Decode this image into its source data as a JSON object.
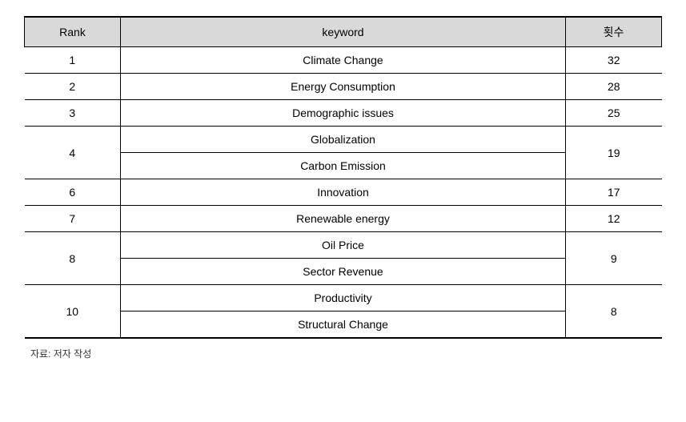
{
  "table": {
    "columns": {
      "rank": "Rank",
      "keyword": "keyword",
      "count": "횟수"
    },
    "header_bg": "#d9d9d9",
    "border_color": "#000000",
    "font_size": 14,
    "rows": [
      {
        "rank": "1",
        "keywords": [
          "Climate Change"
        ],
        "count": "32"
      },
      {
        "rank": "2",
        "keywords": [
          "Energy Consumption"
        ],
        "count": "28"
      },
      {
        "rank": "3",
        "keywords": [
          "Demographic issues"
        ],
        "count": "25"
      },
      {
        "rank": "4",
        "keywords": [
          "Globalization",
          "Carbon Emission"
        ],
        "count": "19"
      },
      {
        "rank": "6",
        "keywords": [
          "Innovation"
        ],
        "count": "17"
      },
      {
        "rank": "7",
        "keywords": [
          "Renewable energy"
        ],
        "count": "12"
      },
      {
        "rank": "8",
        "keywords": [
          "Oil Price",
          "Sector Revenue"
        ],
        "count": "9"
      },
      {
        "rank": "10",
        "keywords": [
          "Productivity",
          "Structural Change"
        ],
        "count": "8"
      }
    ],
    "column_widths": {
      "rank": 120,
      "count": 120
    }
  },
  "source_note": "자료: 저자 작성"
}
